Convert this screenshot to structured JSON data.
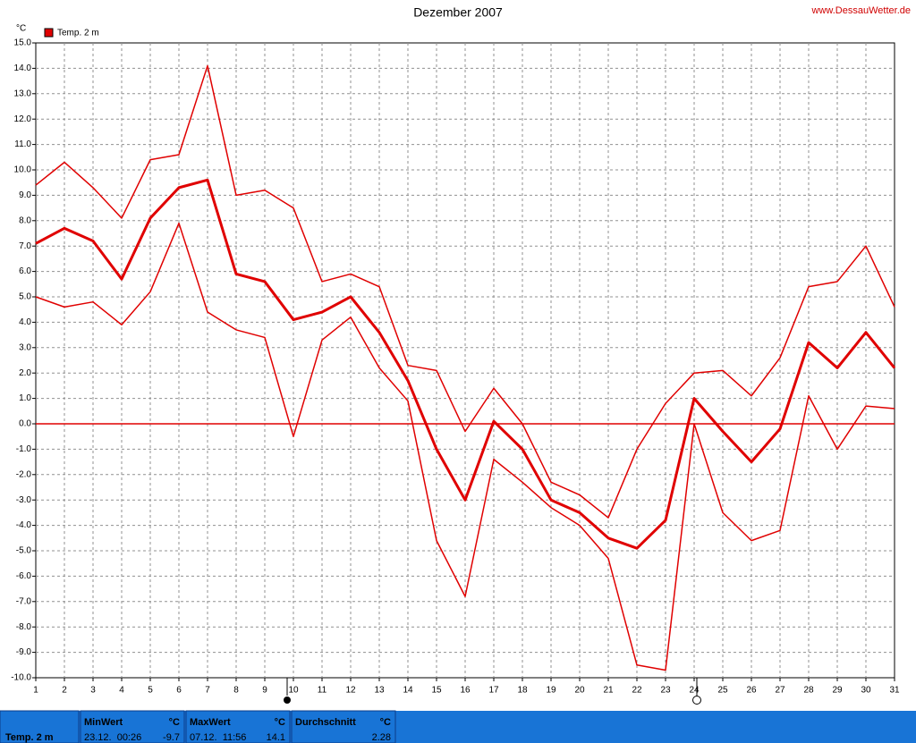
{
  "chart_data": {
    "type": "line",
    "title": "Dezember 2007",
    "source": "www.DessauWetter.de",
    "y_unit": "°C",
    "x": [
      1,
      2,
      3,
      4,
      5,
      6,
      7,
      8,
      9,
      10,
      11,
      12,
      13,
      14,
      15,
      16,
      17,
      18,
      19,
      20,
      21,
      22,
      23,
      24,
      25,
      26,
      27,
      28,
      29,
      30,
      31
    ],
    "series": [
      {
        "name": "Temp. 2 m",
        "color": "#e00000",
        "width": 3,
        "values": [
          7.1,
          7.7,
          7.2,
          5.7,
          8.1,
          9.3,
          9.6,
          5.9,
          5.6,
          4.1,
          4.4,
          5.0,
          3.6,
          1.7,
          -1.0,
          -3.0,
          0.1,
          -1.0,
          -3.0,
          -3.5,
          -4.5,
          -4.9,
          -3.8,
          1.0,
          -0.3,
          -1.5,
          -0.2,
          3.2,
          2.2,
          3.6,
          2.2
        ]
      },
      {
        "color": "#e00000",
        "width": 1.5,
        "values": [
          9.4,
          10.3,
          9.3,
          8.1,
          10.4,
          10.6,
          14.1,
          9.0,
          9.2,
          8.5,
          5.6,
          5.9,
          5.4,
          2.3,
          2.1,
          -0.3,
          1.4,
          0.0,
          -2.3,
          -2.8,
          -3.7,
          -1.0,
          0.8,
          2.0,
          2.1,
          1.1,
          2.6,
          5.4,
          5.6,
          7.0,
          4.6
        ]
      },
      {
        "color": "#e00000",
        "width": 1.5,
        "values": [
          5.0,
          4.6,
          4.8,
          3.9,
          5.2,
          7.9,
          4.4,
          3.7,
          3.4,
          -0.5,
          3.3,
          4.2,
          2.2,
          0.9,
          -4.6,
          -6.8,
          -1.4,
          -2.3,
          -3.3,
          -4.0,
          -5.3,
          -9.5,
          -9.7,
          0.0,
          -3.5,
          -4.6,
          -4.2,
          1.1,
          -1.0,
          0.7,
          0.6
        ]
      }
    ],
    "xlim": [
      1,
      31
    ],
    "xticks": [
      1,
      2,
      3,
      4,
      5,
      6,
      7,
      8,
      9,
      10,
      11,
      12,
      13,
      14,
      15,
      16,
      17,
      18,
      19,
      20,
      21,
      22,
      23,
      24,
      25,
      26,
      27,
      28,
      29,
      30,
      31
    ],
    "ylim": [
      -10,
      15
    ],
    "yticks": [
      {
        "value": -10,
        "label": "-10.0"
      },
      {
        "value": -9,
        "label": "-9.0"
      },
      {
        "value": -8,
        "label": "-8.0"
      },
      {
        "value": -7,
        "label": "-7.0"
      },
      {
        "value": -6,
        "label": "-6.0"
      },
      {
        "value": -5,
        "label": "-5.0"
      },
      {
        "value": -4,
        "label": "-4.0"
      },
      {
        "value": -3,
        "label": "-3.0"
      },
      {
        "value": -2,
        "label": "-2.0"
      },
      {
        "value": -1,
        "label": "-1.0"
      },
      {
        "value": 0,
        "label": "0.0"
      },
      {
        "value": 1,
        "label": "1.0"
      },
      {
        "value": 2,
        "label": "2.0"
      },
      {
        "value": 3,
        "label": "3.0"
      },
      {
        "value": 4,
        "label": "4.0"
      },
      {
        "value": 5,
        "label": "5.0"
      },
      {
        "value": 6,
        "label": "6.0"
      },
      {
        "value": 7,
        "label": "7.0"
      },
      {
        "value": 8,
        "label": "8.0"
      },
      {
        "value": 9,
        "label": "9.0"
      },
      {
        "value": 10,
        "label": "10.0"
      },
      {
        "value": 11,
        "label": "11.0"
      },
      {
        "value": 12,
        "label": "12.0"
      },
      {
        "value": 13,
        "label": "13.0"
      },
      {
        "value": 14,
        "label": "14.0"
      },
      {
        "value": 15,
        "label": "15.0"
      }
    ],
    "grid": true,
    "zero_line_color": "#e00000"
  },
  "summary": {
    "row_label": "Temp. 2 m",
    "columns": [
      {
        "header": "MinWert",
        "unit": "°C",
        "time": "23.12.  00:26",
        "value": -9.7
      },
      {
        "header": "MaxWert",
        "unit": "°C",
        "time": "07.12.  11:56",
        "value": 14.1
      },
      {
        "header": "Durchschnitt",
        "unit": "°C",
        "value": 2.28
      }
    ]
  }
}
